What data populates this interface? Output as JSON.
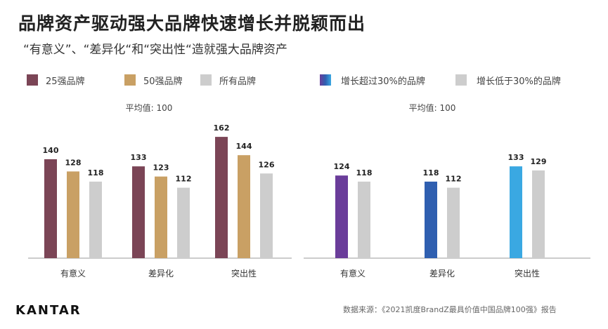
{
  "title": "品牌资产驱动强大品牌快速增长并脱颖而出",
  "subtitle": "“有意义”、“差异化“和“突出性“造就强大品牌资产",
  "logo": "KANTAR",
  "source": "数据来源：《2021凯度BrandZ最具价值中国品牌100强》报告",
  "chart_data": [
    {
      "type": "bar",
      "note": "平均值: 100",
      "categories": [
        "有意义",
        "差异化",
        "突出性"
      ],
      "legend_position": "top-left",
      "series": [
        {
          "name": "25强品牌",
          "color": "#7b4556",
          "values": [
            140,
            133,
            162
          ]
        },
        {
          "name": "50强品牌",
          "color": "#c9a064",
          "values": [
            128,
            123,
            144
          ]
        },
        {
          "name": "所有品牌",
          "color": "#cdcdcd",
          "values": [
            118,
            112,
            126
          ]
        }
      ]
    },
    {
      "type": "bar",
      "note": "平均值: 100",
      "categories": [
        "有意义",
        "差异化",
        "突出性"
      ],
      "legend_position": "top-left",
      "series": [
        {
          "name": "增长超过30%的品牌",
          "color": "#6a3d9a",
          "point_colors": [
            "#6a3d9a",
            "#2f5fb0",
            "#3aa8e2"
          ],
          "values": [
            124,
            118,
            133
          ]
        },
        {
          "name": "增长低于30%的品牌",
          "color": "#cdcdcd",
          "values": [
            118,
            112,
            129
          ]
        }
      ]
    }
  ]
}
